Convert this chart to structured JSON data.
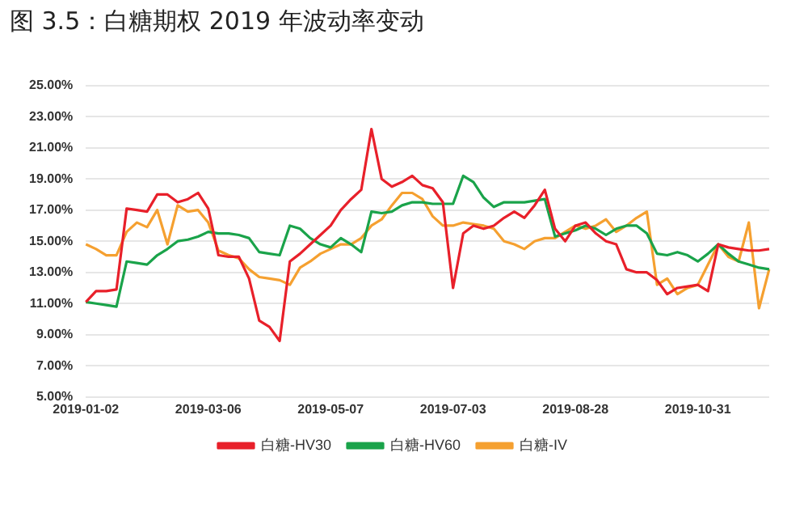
{
  "chart_data": {
    "type": "line",
    "title": "图 3.5：白糖期权 2019 年波动率变动",
    "categories": [
      "2019-01-02",
      null,
      null,
      null,
      null,
      null,
      null,
      null,
      null,
      null,
      null,
      null,
      "2019-03-06",
      null,
      null,
      null,
      null,
      null,
      null,
      null,
      null,
      null,
      null,
      null,
      "2019-05-07",
      null,
      null,
      null,
      null,
      null,
      null,
      null,
      null,
      null,
      null,
      null,
      "2019-07-03",
      null,
      null,
      null,
      null,
      null,
      null,
      null,
      null,
      null,
      null,
      null,
      "2019-08-28",
      null,
      null,
      null,
      null,
      null,
      null,
      null,
      null,
      null,
      null,
      null,
      "2019-10-31",
      null,
      null,
      null,
      null,
      null,
      null,
      null
    ],
    "series": [
      {
        "name": "白糖-HV30",
        "color": "#e8202a",
        "values": [
          11.1,
          11.8,
          11.8,
          11.9,
          17.1,
          17,
          16.9,
          18,
          18,
          17.5,
          17.7,
          18.1,
          17.1,
          14.1,
          14,
          14,
          12.6,
          9.9,
          9.5,
          8.6,
          13.7,
          14.2,
          14.8,
          15.4,
          16,
          17,
          17.7,
          18.3,
          22.2,
          19,
          18.5,
          18.8,
          19.2,
          18.6,
          18.4,
          17.5,
          12,
          15.5,
          16,
          15.8,
          16,
          16.5,
          16.9,
          16.5,
          17.3,
          18.3,
          15.8,
          15,
          16,
          16.2,
          15.5,
          15,
          14.8,
          13.2,
          13,
          13,
          12.5,
          11.6,
          12,
          12.1,
          12.2,
          11.8,
          14.8,
          14.6,
          14.5,
          14.4,
          14.4,
          14.5
        ]
      },
      {
        "name": "白糖-HV60",
        "color": "#1aa34a",
        "values": [
          11.1,
          11,
          10.9,
          10.8,
          13.7,
          13.6,
          13.5,
          14.1,
          14.5,
          15,
          15.1,
          15.3,
          15.6,
          15.5,
          15.5,
          15.4,
          15.2,
          14.3,
          14.2,
          14.1,
          16,
          15.8,
          15.2,
          14.8,
          14.6,
          15.2,
          14.8,
          14.3,
          16.9,
          16.8,
          16.9,
          17.3,
          17.5,
          17.5,
          17.4,
          17.4,
          17.4,
          19.2,
          18.8,
          17.8,
          17.2,
          17.5,
          17.5,
          17.5,
          17.6,
          17.7,
          15.3,
          15.5,
          15.7,
          16,
          15.8,
          15.4,
          15.8,
          16,
          16,
          15.5,
          14.2,
          14.1,
          14.3,
          14.1,
          13.7,
          14.2,
          14.8,
          14.2,
          13.7,
          13.5,
          13.3,
          13.2
        ]
      },
      {
        "name": "白糖-IV",
        "color": "#f5a030",
        "values": [
          14.8,
          14.5,
          14.1,
          14.1,
          15.6,
          16.2,
          15.9,
          17,
          14.8,
          17.3,
          16.9,
          17,
          16.2,
          14.4,
          14.1,
          13.9,
          13.2,
          12.7,
          12.6,
          12.5,
          12.2,
          13.3,
          13.7,
          14.2,
          14.5,
          14.8,
          14.8,
          15.2,
          16,
          16.4,
          17.3,
          18.1,
          18.1,
          17.7,
          16.6,
          16,
          16,
          16.2,
          16.1,
          16,
          15.8,
          15,
          14.8,
          14.5,
          15,
          15.2,
          15.2,
          15.6,
          16,
          15.8,
          16,
          16.4,
          15.6,
          16,
          16.5,
          16.9,
          12.2,
          12.6,
          11.6,
          12,
          12.2,
          13.5,
          14.8,
          14,
          13.7,
          16.2,
          10.7,
          13.2
        ]
      }
    ],
    "ylim": [
      5,
      25
    ],
    "yticks": [
      {
        "value": 5,
        "label": "5.00%"
      },
      {
        "value": 7,
        "label": "7.00%"
      },
      {
        "value": 9,
        "label": "9.00%"
      },
      {
        "value": 11,
        "label": "11.00%"
      },
      {
        "value": 13,
        "label": "13.00%"
      },
      {
        "value": 15,
        "label": "15.00%"
      },
      {
        "value": 17,
        "label": "17.00%"
      },
      {
        "value": 19,
        "label": "19.00%"
      },
      {
        "value": 21,
        "label": "21.00%"
      },
      {
        "value": 23,
        "label": "23.00%"
      },
      {
        "value": 25,
        "label": "25.00%"
      }
    ],
    "grid": "y",
    "legend": "bottom",
    "marker": "none",
    "line_style": "solid"
  }
}
